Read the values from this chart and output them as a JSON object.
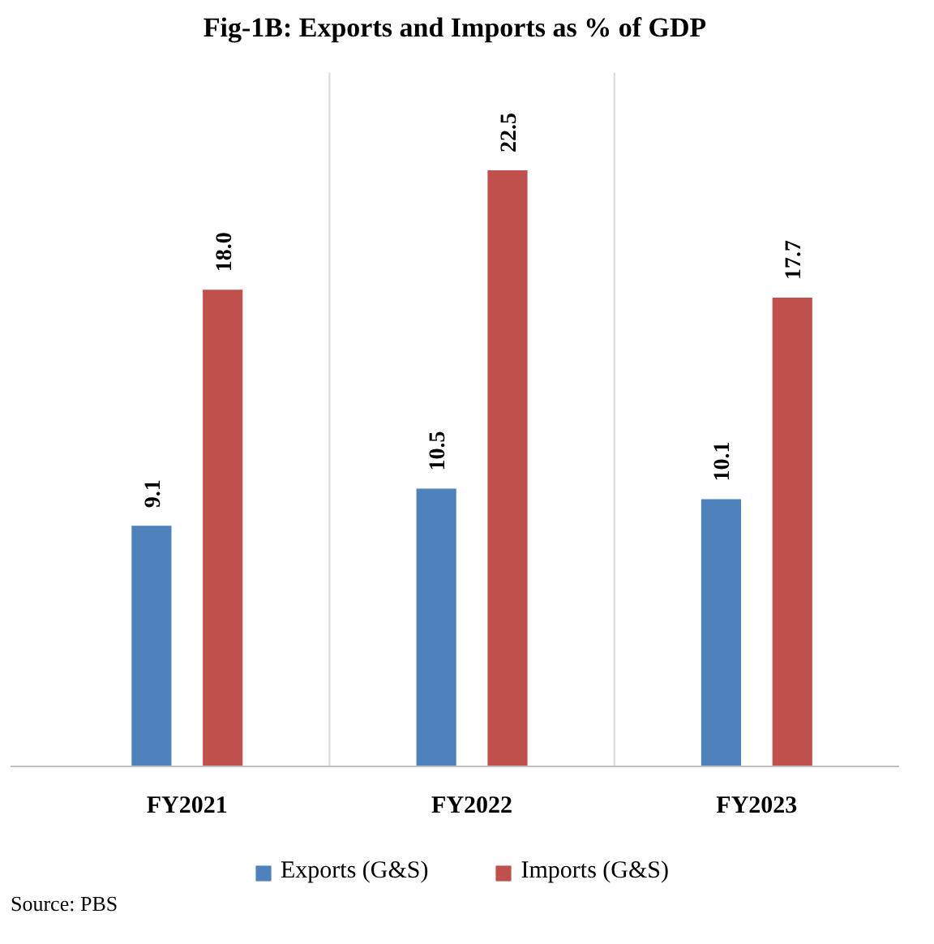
{
  "chart_data": {
    "type": "bar",
    "title": "Fig-1B: Exports and Imports as % of GDP",
    "categories": [
      "FY2021",
      "FY2022",
      "FY2023"
    ],
    "series": [
      {
        "name": "Exports (G&S)",
        "color": "#4f81bd",
        "values": [
          9.1,
          10.5,
          10.1
        ],
        "value_labels": [
          "9.1",
          "10.5",
          "10.1"
        ]
      },
      {
        "name": "Imports (G&S)",
        "color": "#c0504d",
        "values": [
          18.0,
          22.5,
          17.7
        ],
        "value_labels": [
          "18.0",
          "22.5",
          "17.7"
        ]
      }
    ],
    "grid": "x",
    "legend": "bottom",
    "tick_labels": "x",
    "annotations": [
      "Source: PBS"
    ]
  }
}
